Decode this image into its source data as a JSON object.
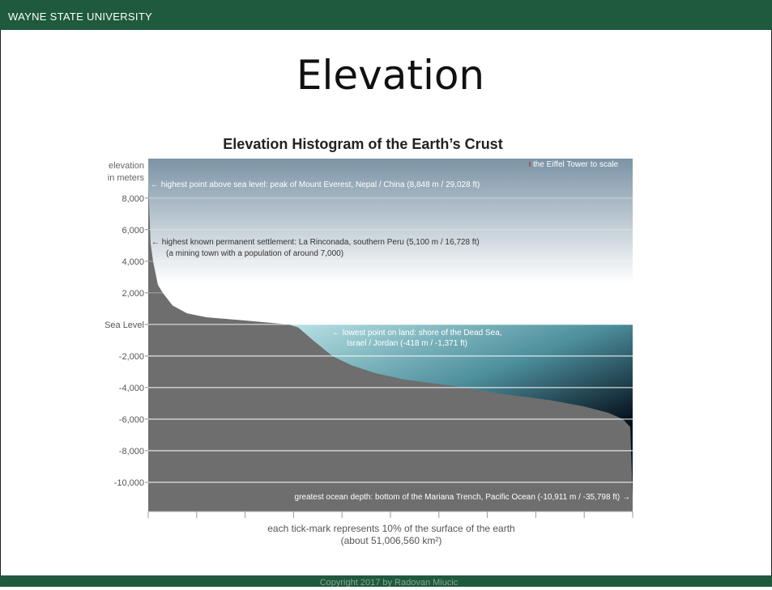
{
  "header": "WAYNE STATE UNIVERSITY",
  "slide_title": "Elevation",
  "footer": "Copyright 2017 by Radovan Miucic",
  "chart_data": {
    "type": "area",
    "title": "Elevation Histogram of the Earth’s Crust",
    "ylabel": [
      "elevation",
      "in meters"
    ],
    "xlabel": [
      "each tick-mark represents 10% of the surface of the earth",
      "(about 51,006,560 km²)"
    ],
    "annotations": [
      "← highest point above sea level: peak of Mount Everest, Nepal / China (8,848 m / 29,028 ft)",
      "← highest known permanent settlement: La Rinconada, southern Peru (5,100 m / 16,728 ft)",
      "(a mining town with a population of around 7,000)",
      "← lowest point on land: shore of the Dead Sea,",
      "Israel / Jordan (-418 m / -1,371 ft)",
      "greatest ocean depth: bottom of the Mariana Trench, Pacific Ocean (-10,911 m / -35,798 ft) →",
      "the Eiffel Tower to scale"
    ],
    "x": [
      0,
      0.5,
      1,
      2,
      3,
      5,
      8,
      12,
      20,
      29,
      31,
      34,
      38,
      42,
      47,
      53,
      63,
      73,
      83,
      90,
      95,
      98,
      99.5,
      100
    ],
    "values": [
      8848,
      5100,
      4000,
      2500,
      2000,
      1200,
      700,
      450,
      250,
      0,
      -200,
      -1000,
      -2000,
      -2600,
      -3100,
      -3500,
      -3900,
      -4400,
      -4800,
      -5200,
      -5600,
      -6000,
      -6500,
      -10911
    ],
    "color": "#6e6e6e",
    "xlim": [
      0,
      100
    ],
    "xticks": [
      0,
      10,
      20,
      30,
      40,
      50,
      60,
      70,
      80,
      90,
      100
    ],
    "ylim": [
      -11850,
      10500
    ],
    "yticks": [
      {
        "value": 8000,
        "label": "8,000"
      },
      {
        "value": 6000,
        "label": "6,000"
      },
      {
        "value": 4000,
        "label": "4,000"
      },
      {
        "value": 2000,
        "label": "2,000"
      },
      {
        "value": 0,
        "label": "Sea Level"
      },
      {
        "value": -2000,
        "label": "-2,000"
      },
      {
        "value": -4000,
        "label": "-4,000"
      },
      {
        "value": -6000,
        "label": "-6,000"
      },
      {
        "value": -8000,
        "label": "-8,000"
      },
      {
        "value": -10000,
        "label": "-10,000"
      }
    ],
    "grid": true
  }
}
